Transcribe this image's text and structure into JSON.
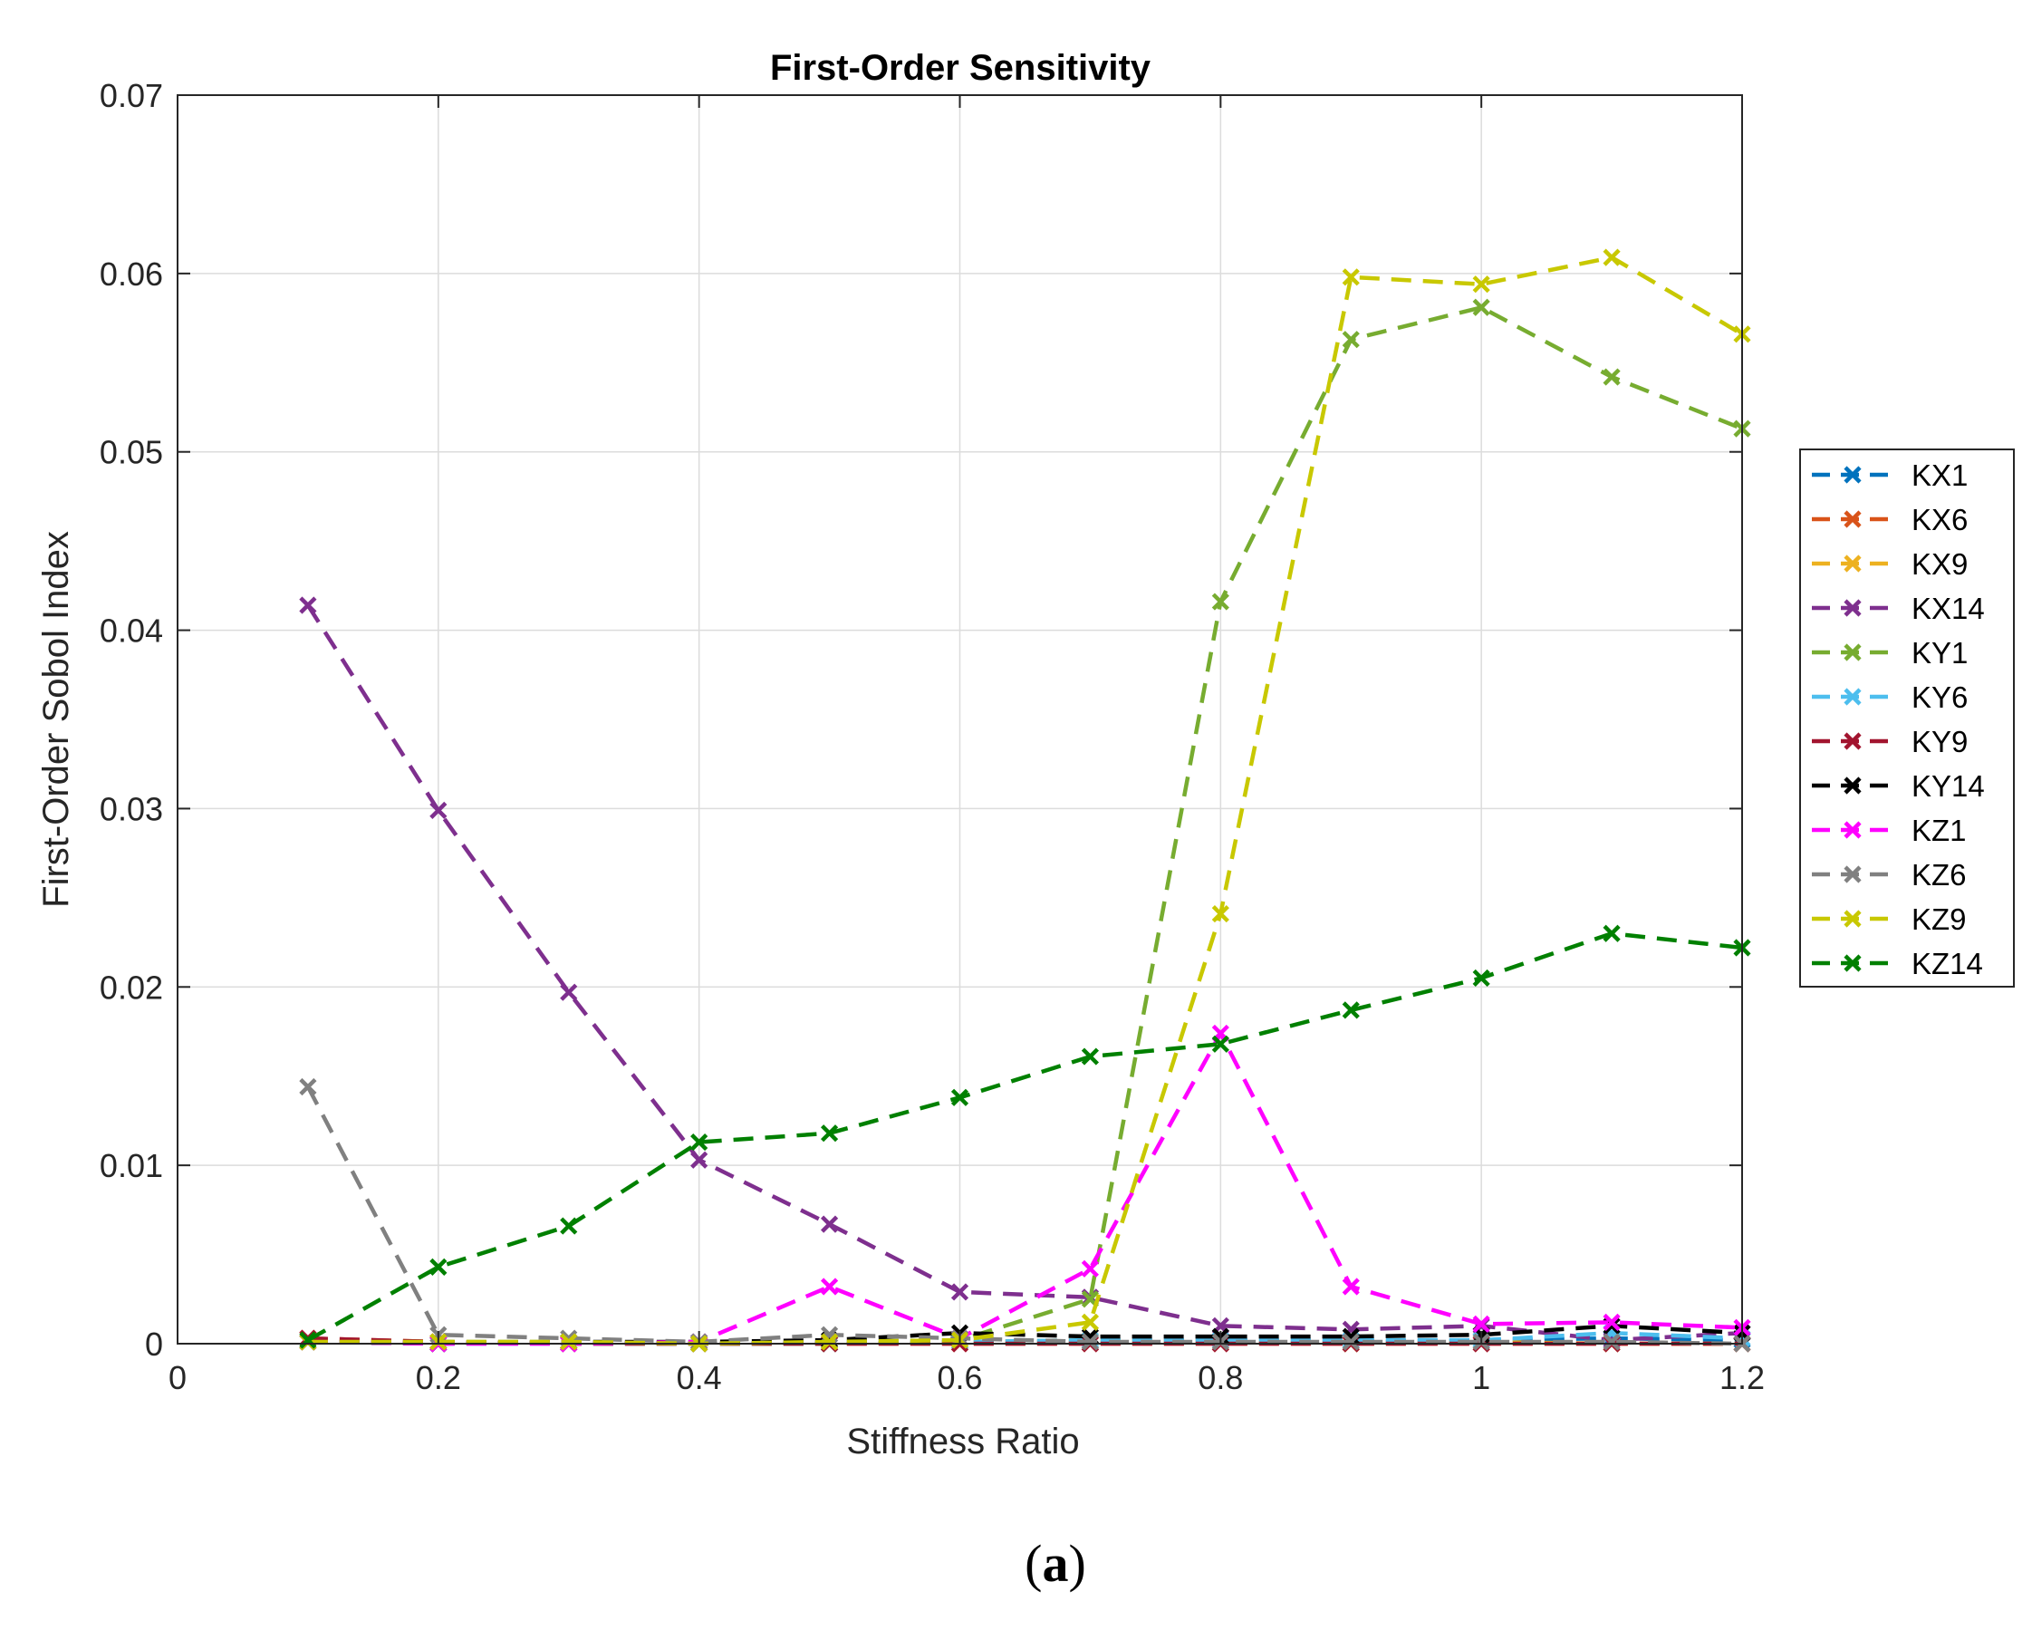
{
  "chart_data": {
    "type": "line",
    "title": "First-Order Sensitivity",
    "xlabel": "Stiffness Ratio",
    "ylabel": "First-Order Sobol Index",
    "xlim": [
      0,
      1.2
    ],
    "ylim": [
      0,
      0.07
    ],
    "xticks": [
      0,
      0.2,
      0.4,
      0.6,
      0.8,
      1,
      1.2
    ],
    "xtick_labels": [
      "0",
      "0.2",
      "0.4",
      "0.6",
      "0.8",
      "1",
      "1.2"
    ],
    "yticks": [
      0,
      0.01,
      0.02,
      0.03,
      0.04,
      0.05,
      0.06,
      0.07
    ],
    "ytick_labels": [
      "0",
      "0.01",
      "0.02",
      "0.03",
      "0.04",
      "0.05",
      "0.06",
      "0.07"
    ],
    "grid": true,
    "legend_position": "outside-right",
    "line_style": "dashed",
    "marker": "x",
    "x": [
      0.1,
      0.2,
      0.3,
      0.4,
      0.5,
      0.6,
      0.7,
      0.8,
      0.9,
      1.0,
      1.1,
      1.2
    ],
    "series": [
      {
        "name": "KX1",
        "color": "#0072BD",
        "values": [
          0.0001,
          0.0,
          0.0001,
          0.0,
          0.0,
          0.0001,
          0.0001,
          0.0002,
          0.0001,
          0.0002,
          0.0003,
          0.0002
        ]
      },
      {
        "name": "KX6",
        "color": "#D95319",
        "values": [
          0.0003,
          0.0001,
          0.0,
          0.0,
          0.0,
          0.0,
          0.0,
          0.0,
          0.0,
          0.0,
          0.0,
          0.0
        ]
      },
      {
        "name": "KX9",
        "color": "#EDB120",
        "values": [
          0.0001,
          0.0,
          0.0001,
          0.0,
          0.0,
          0.0001,
          0.0002,
          0.0001,
          0.0,
          0.0001,
          0.0,
          0.0
        ]
      },
      {
        "name": "KX14",
        "color": "#7E2F8E",
        "values": [
          0.0414,
          0.0299,
          0.0197,
          0.0103,
          0.0067,
          0.0029,
          0.0026,
          0.001,
          0.0008,
          0.001,
          0.0002,
          0.0006
        ]
      },
      {
        "name": "KY1",
        "color": "#77AC30",
        "values": [
          0.0001,
          0.0001,
          0.0001,
          0.0,
          0.0001,
          0.0002,
          0.0025,
          0.0416,
          0.0563,
          0.0581,
          0.0542,
          0.0513
        ]
      },
      {
        "name": "KY6",
        "color": "#4DBEEE",
        "values": [
          0.0001,
          0.0,
          0.0,
          0.0,
          0.0,
          0.0001,
          0.0002,
          0.0002,
          0.0002,
          0.0002,
          0.0006,
          0.0003
        ]
      },
      {
        "name": "KY9",
        "color": "#A2142F",
        "values": [
          0.0003,
          0.0001,
          0.0,
          0.0,
          0.0,
          0.0,
          0.0,
          0.0,
          0.0,
          0.0,
          0.0,
          0.0
        ]
      },
      {
        "name": "KY14",
        "color": "#000000",
        "values": [
          0.0001,
          0.0,
          0.0001,
          0.0001,
          0.0002,
          0.0006,
          0.0004,
          0.0004,
          0.0004,
          0.0005,
          0.001,
          0.0006
        ]
      },
      {
        "name": "KZ1",
        "color": "#FF00FF",
        "values": [
          0.0001,
          0.0,
          0.0,
          0.0001,
          0.0032,
          0.0003,
          0.0042,
          0.0174,
          0.0032,
          0.0011,
          0.0012,
          0.0009
        ]
      },
      {
        "name": "KZ6",
        "color": "#808080",
        "values": [
          0.0144,
          0.0005,
          0.0003,
          0.0001,
          0.0005,
          0.0003,
          0.0001,
          0.0001,
          0.0001,
          0.0001,
          0.0001,
          0.0
        ]
      },
      {
        "name": "KZ9",
        "color": "#C8C800",
        "values": [
          0.0001,
          0.0001,
          0.0001,
          0.0,
          0.0001,
          0.0002,
          0.0012,
          0.0241,
          0.0598,
          0.0594,
          0.0609,
          0.0566
        ]
      },
      {
        "name": "KZ14",
        "color": "#008000",
        "values": [
          0.0002,
          0.0043,
          0.0066,
          0.0113,
          0.0118,
          0.0138,
          0.0161,
          0.0168,
          0.0187,
          0.0205,
          0.023,
          0.0222
        ]
      }
    ]
  },
  "caption": {
    "open": "(",
    "letter": "a",
    "close": ")"
  }
}
